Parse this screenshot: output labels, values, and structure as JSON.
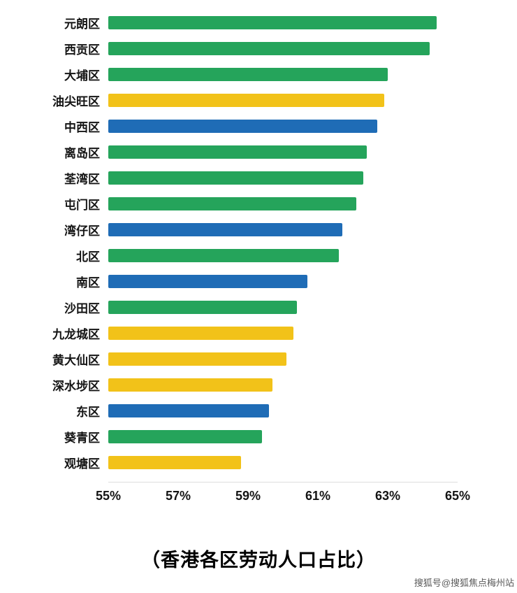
{
  "chart_data": {
    "type": "bar",
    "orientation": "horizontal",
    "title": "（香港各区劳动人口占比）",
    "xlabel": "",
    "ylabel": "",
    "xlim": [
      55,
      65
    ],
    "x_ticks": [
      55,
      57,
      59,
      61,
      63,
      65
    ],
    "x_tick_labels": [
      "55%",
      "57%",
      "59%",
      "61%",
      "63%",
      "65%"
    ],
    "grid": false,
    "legend": "none",
    "categories": [
      "元朗区",
      "西贡区",
      "大埔区",
      "油尖旺区",
      "中西区",
      "离岛区",
      "荃湾区",
      "屯门区",
      "湾仔区",
      "北区",
      "南区",
      "沙田区",
      "九龙城区",
      "黄大仙区",
      "深水埗区",
      "东区",
      "葵青区",
      "观塘区"
    ],
    "values": [
      64.4,
      64.2,
      63.0,
      62.9,
      62.7,
      62.4,
      62.3,
      62.1,
      61.7,
      61.6,
      60.7,
      60.4,
      60.3,
      60.1,
      59.7,
      59.6,
      59.4,
      58.8
    ],
    "bar_colors": [
      "green",
      "green",
      "green",
      "yellow",
      "blue",
      "green",
      "green",
      "green",
      "blue",
      "green",
      "blue",
      "green",
      "yellow",
      "yellow",
      "yellow",
      "blue",
      "green",
      "yellow"
    ],
    "palette": {
      "green": "#25a45b",
      "yellow": "#f2c219",
      "blue": "#1f6cb6"
    }
  },
  "watermark": "搜狐号@搜狐焦点梅州站"
}
